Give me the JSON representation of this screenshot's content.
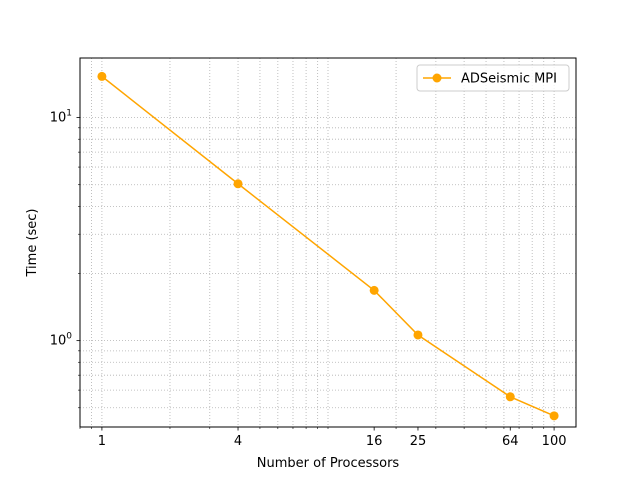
{
  "chart_data": {
    "type": "line",
    "xscale": "log",
    "yscale": "log",
    "xlabel": "Number of Processors",
    "ylabel": "Time (sec)",
    "x": [
      1,
      4,
      16,
      25,
      64,
      100
    ],
    "xticks": [
      1,
      4,
      16,
      25,
      64,
      100
    ],
    "xlim": [
      0.8,
      125
    ],
    "ylim": [
      0.41,
      18.5
    ],
    "yticks_major": [
      1,
      10
    ],
    "grid": "both-major-minor-dotted",
    "legend_position": "top-right",
    "series": [
      {
        "name": "ADSeismic MPI",
        "color": "#ffa500",
        "marker": "circle",
        "values": [
          15.3,
          5.05,
          1.68,
          1.06,
          0.56,
          0.46
        ]
      }
    ]
  }
}
